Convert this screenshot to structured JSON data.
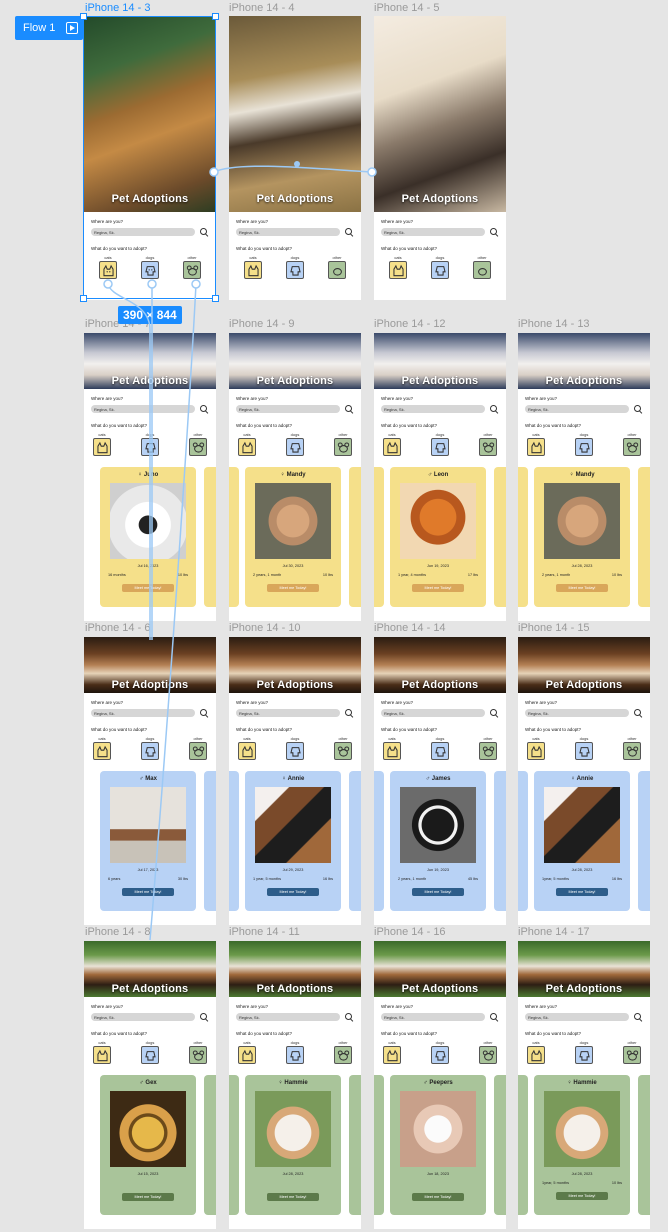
{
  "canvas": {
    "flow_label": "Flow 1",
    "selection_size": "390 × 844",
    "accent": "#1a8cff"
  },
  "app": {
    "brand": "Pet Adoptions",
    "where_label": "Where are you?",
    "location_value": "Regina, Sk.",
    "what_label": "What do you want to adopt?",
    "categories": [
      "cats",
      "dogs",
      "other"
    ]
  },
  "frames": [
    {
      "title": "iPhone 14 - 3"
    },
    {
      "title": "iPhone 14 - 4"
    },
    {
      "title": "iPhone 14 - 5"
    },
    {
      "title": "iPhone 14 - 7"
    },
    {
      "title": "iPhone 14 - 9"
    },
    {
      "title": "iPhone 14 - 12"
    },
    {
      "title": "iPhone 14 - 13"
    },
    {
      "title": "iPhone 14 - 6"
    },
    {
      "title": "iPhone 14 - 10"
    },
    {
      "title": "iPhone 14 - 14"
    },
    {
      "title": "iPhone 14 - 15"
    },
    {
      "title": "iPhone 14 - 8"
    },
    {
      "title": "iPhone 14 - 11"
    },
    {
      "title": "iPhone 14 - 16"
    },
    {
      "title": "iPhone 14 - 17"
    }
  ],
  "cards": {
    "juno": {
      "name": "♀ Juno",
      "date": "Jul 16, 2023",
      "age": "16 months",
      "weight": "10 lbs",
      "cta": "Meet me Today!"
    },
    "mandy": {
      "name": "♀ Mandy",
      "date": "Jul 30, 2023",
      "age": "2 years, 1 month",
      "weight": "10 lbs",
      "cta": "Meet me Today!"
    },
    "leon": {
      "name": "♂ Leon",
      "date": "Jun 19, 2023",
      "age": "1 year, 4 months",
      "weight": "17 lbs",
      "cta": "Meet me Today!"
    },
    "mandy2": {
      "name": "♀ Mandy",
      "date": "Jul 28, 2023",
      "age": "2 years, 1 month",
      "weight": "10 lbs",
      "cta": "Meet me Today!"
    },
    "max": {
      "name": "♂ Max",
      "date": "Jul 17, 2023",
      "age": "6 years",
      "weight": "30 lbs",
      "cta": "Meet me Today!"
    },
    "annie": {
      "name": "♀ Annie",
      "date": "Jul 29, 2023",
      "age": "1 year, 5 months",
      "weight": "16 lbs",
      "cta": "Meet me Today!"
    },
    "james": {
      "name": "♂ James",
      "date": "Jun 19, 2023",
      "age": "2 years, 1 month",
      "weight": "45 lbs",
      "cta": "Meet me Today!"
    },
    "annie2": {
      "name": "♀ Annie",
      "date": "Jul 28, 2023",
      "age": "1year, 5 months",
      "weight": "16 lbs",
      "cta": "Meet me Today!"
    },
    "gex": {
      "name": "♂ Gex",
      "date": "Jul 15, 2023",
      "age": "",
      "weight": "",
      "cta": "Meet me Today!"
    },
    "hammie": {
      "name": "♀ Hammie",
      "date": "Jul 28, 2023",
      "age": "",
      "weight": "",
      "cta": "Meet me Today!"
    },
    "peepers": {
      "name": "♂ Peepers",
      "date": "Jun 18, 2023",
      "age": "",
      "weight": "",
      "cta": "Meet me Today!"
    },
    "hammie2": {
      "name": "♀ Hammie",
      "date": "Jul 28, 2023",
      "age": "1year, 5 months",
      "weight": "10 lbs",
      "cta": "Meet me Today!"
    }
  }
}
